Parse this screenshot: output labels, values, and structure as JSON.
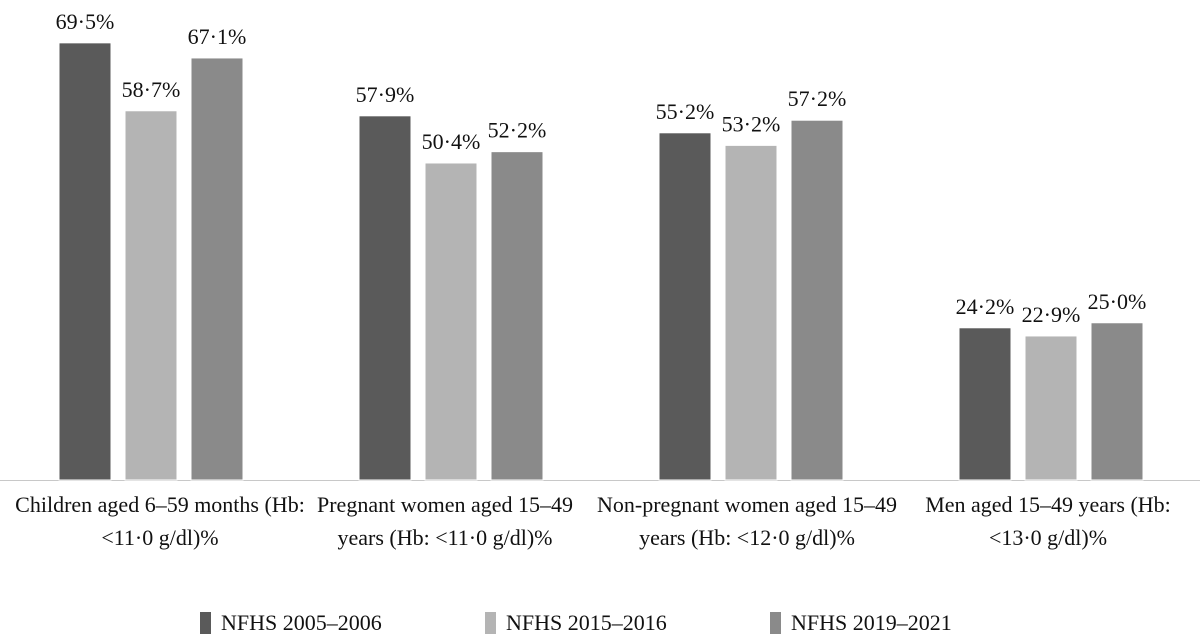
{
  "chart_data": {
    "type": "bar",
    "categories": [
      "Children aged 6–59 months (Hb: <11·0 g/dl)%",
      "Pregnant women aged 15–49 years (Hb: <11·0 g/dl)%",
      "Non-pregnant women aged 15–49 years (Hb: <12·0 g/dl)%",
      "Men aged 15–49 years (Hb: <13·0 g/dl)%"
    ],
    "series": [
      {
        "name": "NFHS 2005–2006",
        "values": [
          69.5,
          57.9,
          55.2,
          24.2
        ],
        "labels": [
          "69·5%",
          "57·9%",
          "55·2%",
          "24·2%"
        ],
        "color": "#5a5a5a"
      },
      {
        "name": "NFHS 2015–2016",
        "values": [
          58.7,
          50.4,
          53.2,
          22.9
        ],
        "labels": [
          "58·7%",
          "50·4%",
          "53·2%",
          "22·9%"
        ],
        "color": "#b4b4b4"
      },
      {
        "name": "NFHS 2019–2021",
        "values": [
          67.1,
          52.2,
          57.2,
          25.0
        ],
        "labels": [
          "67·1%",
          "52·2%",
          "57·2%",
          "25·0%"
        ],
        "color": "#8a8a8a"
      }
    ],
    "ylim": [
      0,
      70
    ],
    "grid": false,
    "legend_position": "bottom"
  }
}
